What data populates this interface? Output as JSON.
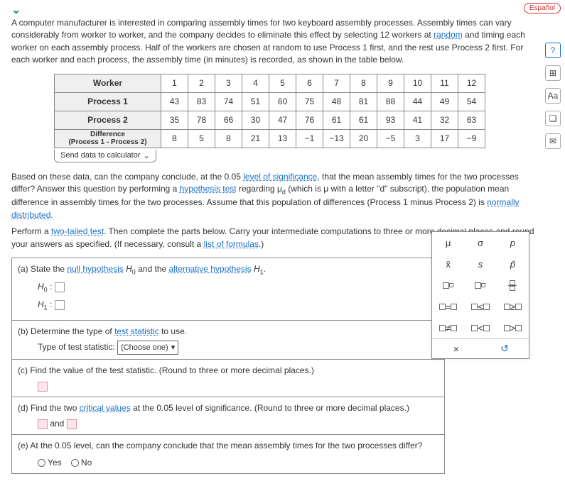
{
  "espanol": "Español",
  "intro": {
    "t1": "A computer manufacturer is interested in comparing assembly times for two keyboard assembly processes. Assembly times can vary considerably from worker to worker, and the company decides to eliminate this effect by selecting 12 workers at ",
    "link1": "random",
    "t2": " and timing each worker on each assembly process. Half of the workers are chosen at random to use Process 1 first, and the rest use Process 2 first. For each worker and each process, the assembly time (in minutes) is recorded, as shown in the table below."
  },
  "table": {
    "headers": [
      "Worker",
      "1",
      "2",
      "3",
      "4",
      "5",
      "6",
      "7",
      "8",
      "9",
      "10",
      "11",
      "12"
    ],
    "rows": [
      {
        "label": "Process 1",
        "vals": [
          "43",
          "83",
          "74",
          "51",
          "60",
          "75",
          "48",
          "81",
          "88",
          "44",
          "49",
          "54"
        ]
      },
      {
        "label": "Process 2",
        "vals": [
          "35",
          "78",
          "66",
          "30",
          "47",
          "76",
          "61",
          "61",
          "93",
          "41",
          "32",
          "63"
        ]
      },
      {
        "label": "Difference\n(Process 1 - Process 2)",
        "vals": [
          "8",
          "5",
          "8",
          "21",
          "13",
          "−1",
          "−13",
          "20",
          "−5",
          "3",
          "17",
          "−9"
        ]
      }
    ]
  },
  "sendcalc": "Send data to calculator",
  "para2": {
    "t1": "Based on these data, can the company conclude, at the 0.05 ",
    "link1": "level of significance",
    "t2": ", that the mean assembly times for the two processes differ? Answer this question by performing a ",
    "link2": "hypothesis test",
    "t3": " regarding μ",
    "sub": "d",
    "t4": " (which is μ with a letter \"d\" subscript), the population mean difference in assembly times for the two processes. Assume that this population of differences (Process 1 minus Process 2) is ",
    "link3": "normally distributed",
    "t5": "."
  },
  "para3": {
    "t1": "Perform a ",
    "link1": "two-tailed test",
    "t2": ". Then complete the parts below. Carry your intermediate computations to three or more decimal places and round your answers as specified. (If necessary, consult a ",
    "link2": "list of formulas",
    "t3": ".)"
  },
  "parts": {
    "a": {
      "text": "(a)  State the ",
      "link1": "null hypothesis",
      "mid": " H",
      "sub0": "0",
      "mid2": " and the ",
      "link2": "alternative hypothesis",
      "mid3": " H",
      "sub1": "1",
      "end": ".",
      "h0": "H",
      "h0sub": "0",
      "colon": " : ",
      "h1": "H",
      "h1sub": "1"
    },
    "b": {
      "text": "(b)  Determine the type of ",
      "link": "test statistic",
      "end": " to use.",
      "label": "Type of test statistic:",
      "choose": "(Choose one)"
    },
    "c": {
      "text": "(c)  Find the value of the test statistic. (Round to three or more decimal places.)"
    },
    "d": {
      "text": "(d)  Find the two ",
      "link": "critical values",
      "end": " at the 0.05 level of significance. (Round to three or more decimal places.)",
      "and": " and "
    },
    "e": {
      "text": "(e)  At the 0.05 level, can the company conclude that the mean assembly times for the two processes differ?",
      "yes": "Yes",
      "no": "No"
    }
  },
  "palette": {
    "r1": [
      "μ",
      "σ",
      "p"
    ],
    "r2": [
      "x̄",
      "s",
      "p̂"
    ],
    "bottom": [
      "×",
      "↺"
    ]
  },
  "sidebar_icons": [
    "?",
    "⊞",
    "Aa",
    "❏",
    "✉"
  ]
}
